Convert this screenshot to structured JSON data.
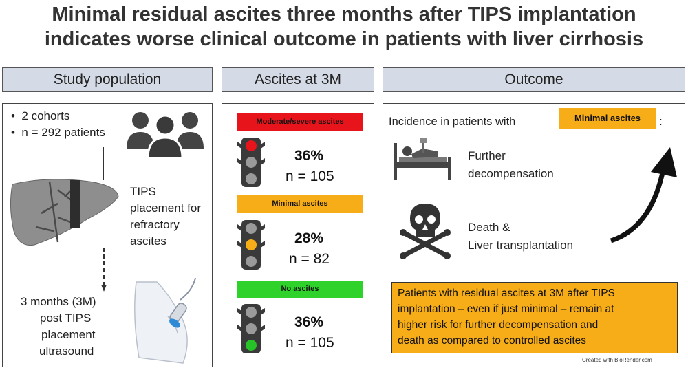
{
  "title": {
    "line1": "Minimal residual ascites three months after TIPS implantation",
    "line2": "indicates worse clinical outcome in patients with liver cirrhosis"
  },
  "study": {
    "header": "Study population",
    "bullet1": "2 cohorts",
    "bullet2": "n = 292 patients",
    "tips_text": [
      "TIPS",
      "placement for",
      "refractory",
      "ascites"
    ],
    "followup_text": [
      "3 months (3M)",
      "post TIPS",
      "placement",
      "ultrasound"
    ]
  },
  "ascites": {
    "header": "Ascites at 3M",
    "groups": [
      {
        "label": "Moderate/severe ascites",
        "color": "#e8141c",
        "light": "#e8141c",
        "light_pos": "top",
        "percent": "36%",
        "n": "n = 105"
      },
      {
        "label": "Minimal ascites",
        "color": "#f7ad18",
        "light": "#f7ad18",
        "light_pos": "middle",
        "percent": "28%",
        "n": "n = 82"
      },
      {
        "label": "No ascites",
        "color": "#2ed22a",
        "light": "#27c227",
        "light_pos": "bottom",
        "percent": "36%",
        "n": "n = 105"
      }
    ]
  },
  "outcome": {
    "header": "Outcome",
    "incidence_text": "Incidence in patients with",
    "incidence_badge": "Minimal ascites",
    "incidence_colon": ":",
    "item1": [
      "Further",
      "decompensation"
    ],
    "item2": [
      "Death &",
      "Liver transplantation"
    ],
    "conclusion": [
      "Patients with residual ascites at 3M after TIPS",
      "implantation – even if just minimal – remain at",
      "higher risk for further decompensation and",
      "death as compared to controlled ascites"
    ],
    "conclusion_color": "#f7ad18",
    "credit": "Created with BioRender.com"
  }
}
